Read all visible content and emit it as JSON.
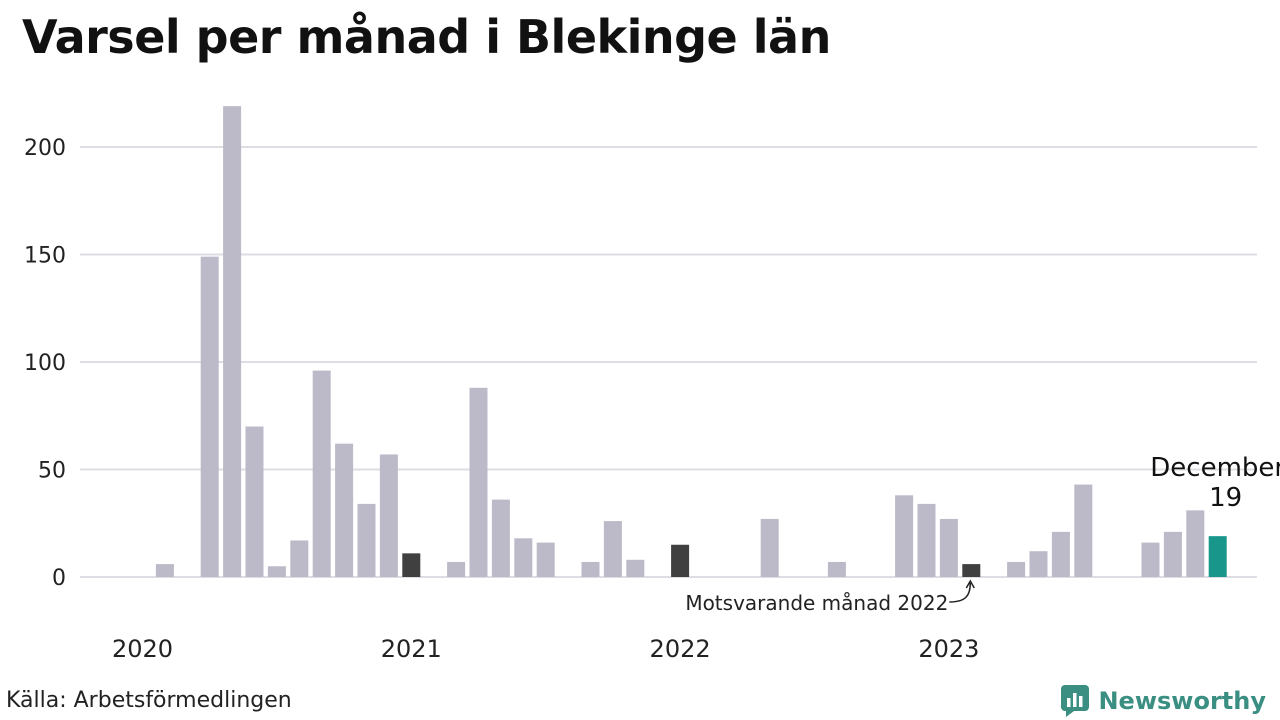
{
  "title": "Varsel per månad i Blekinge län",
  "source": "Källa: Arbetsförmedlingen",
  "brand": "Newsworthy",
  "colors": {
    "bar": "#bcbac8",
    "highlight": "#404040",
    "current": "#18968a",
    "grid": "#dddde3",
    "brand": "#3b8f82"
  },
  "chart_data": {
    "type": "bar",
    "title": "Varsel per månad i Blekinge län",
    "xlabel": "",
    "ylabel": "",
    "ylim": [
      0,
      220
    ],
    "yticks": [
      0,
      50,
      100,
      150,
      200
    ],
    "year_labels": [
      "2020",
      "2021",
      "2022",
      "2023"
    ],
    "categories": [
      "2020-01",
      "2020-02",
      "2020-03",
      "2020-04",
      "2020-05",
      "2020-06",
      "2020-07",
      "2020-08",
      "2020-09",
      "2020-10",
      "2020-11",
      "2020-12",
      "2021-01",
      "2021-02",
      "2021-03",
      "2021-04",
      "2021-05",
      "2021-06",
      "2021-07",
      "2021-08",
      "2021-09",
      "2021-10",
      "2021-11",
      "2021-12",
      "2022-01",
      "2022-02",
      "2022-03",
      "2022-04",
      "2022-05",
      "2022-06",
      "2022-07",
      "2022-08",
      "2022-09",
      "2022-10",
      "2022-11",
      "2022-12",
      "2023-01",
      "2023-02",
      "2023-03",
      "2023-04",
      "2023-05",
      "2023-06",
      "2023-07",
      "2023-08",
      "2023-09",
      "2023-10",
      "2023-11",
      "2023-12"
    ],
    "values": [
      0,
      6,
      0,
      149,
      219,
      70,
      5,
      17,
      96,
      62,
      34,
      57,
      11,
      0,
      7,
      88,
      36,
      18,
      16,
      0,
      7,
      26,
      8,
      0,
      15,
      0,
      0,
      0,
      27,
      0,
      0,
      7,
      0,
      0,
      38,
      34,
      27,
      6,
      0,
      7,
      12,
      21,
      43,
      0,
      0,
      16,
      21,
      31
    ],
    "last_value": 19,
    "last_label": "December",
    "highlight_indices": [
      12,
      24,
      37
    ],
    "current_index": 48,
    "annotation": "Motsvarande månad 2022",
    "grid": true,
    "legend": "none"
  }
}
